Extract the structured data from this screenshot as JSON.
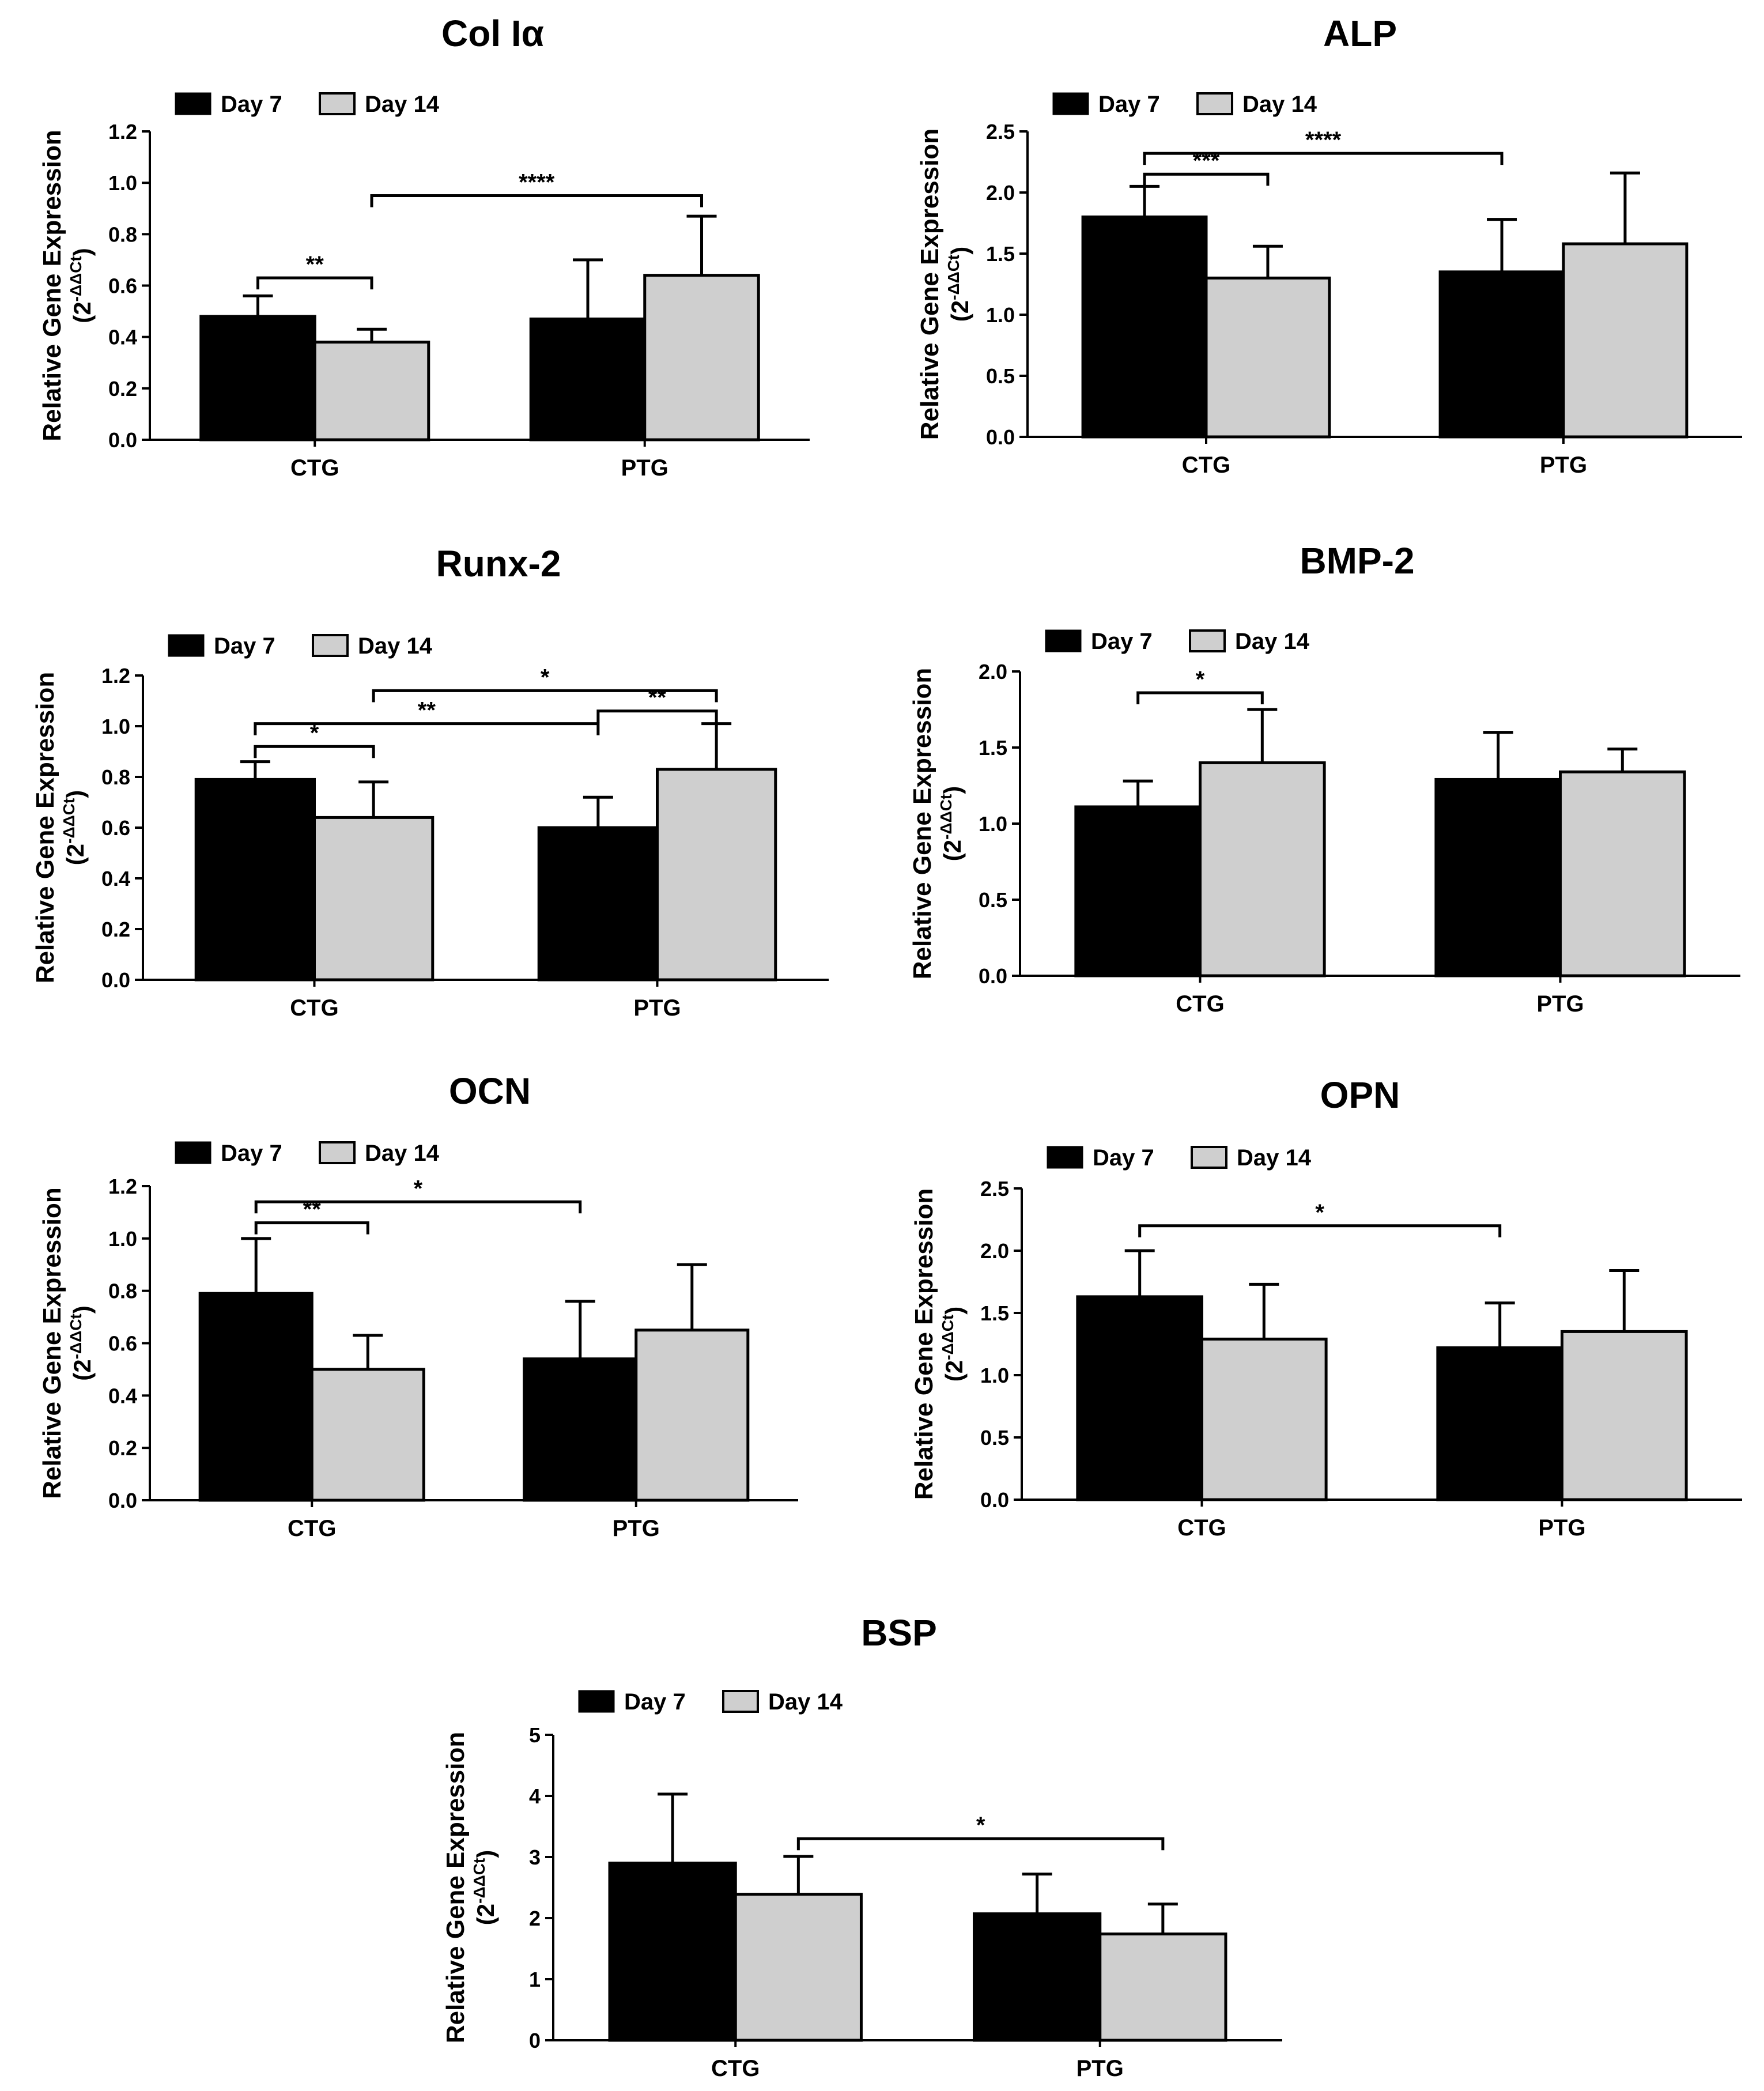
{
  "figure": {
    "legend": {
      "series1": "Day 7",
      "series2": "Day 14"
    },
    "ylabel_line1": "Relative Gene Expression",
    "ylabel_line2_open": "(2",
    "ylabel_line2_sup": "-ΔΔCt",
    "ylabel_line2_close": ")",
    "colors": {
      "day7": "#000000",
      "day14": "#cfcfcf",
      "axis": "#000000"
    }
  },
  "chart_data": [
    {
      "type": "bar",
      "title": "Col Iα",
      "categories": [
        "CTG",
        "PTG"
      ],
      "series": [
        {
          "name": "Day 7",
          "values": [
            0.48,
            0.47
          ],
          "errors": [
            0.08,
            0.23
          ]
        },
        {
          "name": "Day 14",
          "values": [
            0.38,
            0.64
          ],
          "errors": [
            0.05,
            0.23
          ]
        }
      ],
      "ylim": [
        0,
        1.2
      ],
      "yticks": [
        "0.0",
        "0.2",
        "0.4",
        "0.6",
        "0.8",
        "1.0",
        "1.2"
      ],
      "xlabel": "",
      "ylabel": "Relative Gene Expression (2-ΔΔCt)",
      "significance": [
        {
          "from": [
            0,
            0
          ],
          "to": [
            0,
            1
          ],
          "level": 0.63,
          "label": "**"
        },
        {
          "from": [
            0,
            1
          ],
          "to": [
            1,
            1
          ],
          "level": 0.95,
          "label": "****"
        }
      ]
    },
    {
      "type": "bar",
      "title": "ALP",
      "categories": [
        "CTG",
        "PTG"
      ],
      "series": [
        {
          "name": "Day 7",
          "values": [
            1.8,
            1.35
          ],
          "errors": [
            0.25,
            0.43
          ]
        },
        {
          "name": "Day 14",
          "values": [
            1.3,
            1.58
          ],
          "errors": [
            0.26,
            0.58
          ]
        }
      ],
      "ylim": [
        0,
        2.5
      ],
      "yticks": [
        "0.0",
        "0.5",
        "1.0",
        "1.5",
        "2.0",
        "2.5"
      ],
      "xlabel": "",
      "ylabel": "Relative Gene Expression (2-ΔΔCt)",
      "significance": [
        {
          "from": [
            0,
            0
          ],
          "to": [
            0,
            1
          ],
          "level": 2.15,
          "label": "***"
        },
        {
          "from": [
            0,
            0
          ],
          "to": [
            1,
            0
          ],
          "level": 2.32,
          "label": "****"
        }
      ]
    },
    {
      "type": "bar",
      "title": "Runx-2",
      "categories": [
        "CTG",
        "PTG"
      ],
      "series": [
        {
          "name": "Day 7",
          "values": [
            0.79,
            0.6
          ],
          "errors": [
            0.07,
            0.12
          ]
        },
        {
          "name": "Day 14",
          "values": [
            0.64,
            0.83
          ],
          "errors": [
            0.14,
            0.18
          ]
        }
      ],
      "ylim": [
        0,
        1.2
      ],
      "yticks": [
        "0.0",
        "0.2",
        "0.4",
        "0.6",
        "0.8",
        "1.0",
        "1.2"
      ],
      "xlabel": "",
      "ylabel": "Relative Gene Expression (2-ΔΔCt)",
      "significance": [
        {
          "from": [
            0,
            0
          ],
          "to": [
            0,
            1
          ],
          "level": 0.92,
          "label": "*"
        },
        {
          "from": [
            0,
            0
          ],
          "to": [
            1,
            0
          ],
          "level": 1.01,
          "label": "**"
        },
        {
          "from": [
            1,
            0
          ],
          "to": [
            1,
            1
          ],
          "level": 1.06,
          "label": "**"
        },
        {
          "from": [
            0,
            1
          ],
          "to": [
            1,
            1
          ],
          "level": 1.14,
          "label": "*"
        }
      ]
    },
    {
      "type": "bar",
      "title": "BMP-2",
      "categories": [
        "CTG",
        "PTG"
      ],
      "series": [
        {
          "name": "Day 7",
          "values": [
            1.11,
            1.29
          ],
          "errors": [
            0.17,
            0.31
          ]
        },
        {
          "name": "Day 14",
          "values": [
            1.4,
            1.34
          ],
          "errors": [
            0.35,
            0.15
          ]
        }
      ],
      "ylim": [
        0,
        2.0
      ],
      "yticks": [
        "0.0",
        "0.5",
        "1.0",
        "1.5",
        "2.0"
      ],
      "xlabel": "",
      "ylabel": "Relative Gene Expression (2-ΔΔCt)",
      "significance": [
        {
          "from": [
            0,
            0
          ],
          "to": [
            0,
            1
          ],
          "level": 1.86,
          "label": "*"
        }
      ]
    },
    {
      "type": "bar",
      "title": "OCN",
      "categories": [
        "CTG",
        "PTG"
      ],
      "series": [
        {
          "name": "Day 7",
          "values": [
            0.79,
            0.54
          ],
          "errors": [
            0.21,
            0.22
          ]
        },
        {
          "name": "Day 14",
          "values": [
            0.5,
            0.65
          ],
          "errors": [
            0.13,
            0.25
          ]
        }
      ],
      "ylim": [
        0,
        1.2
      ],
      "yticks": [
        "0.0",
        "0.2",
        "0.4",
        "0.6",
        "0.8",
        "1.0",
        "1.2"
      ],
      "xlabel": "",
      "ylabel": "Relative Gene Expression (2-ΔΔCt)",
      "significance": [
        {
          "from": [
            0,
            0
          ],
          "to": [
            0,
            1
          ],
          "level": 1.06,
          "label": "**"
        },
        {
          "from": [
            0,
            0
          ],
          "to": [
            1,
            0
          ],
          "level": 1.14,
          "label": "*"
        }
      ]
    },
    {
      "type": "bar",
      "title": "OPN",
      "categories": [
        "CTG",
        "PTG"
      ],
      "series": [
        {
          "name": "Day 7",
          "values": [
            1.63,
            1.22
          ],
          "errors": [
            0.37,
            0.36
          ]
        },
        {
          "name": "Day 14",
          "values": [
            1.29,
            1.35
          ],
          "errors": [
            0.44,
            0.49
          ]
        }
      ],
      "ylim": [
        0,
        2.5
      ],
      "yticks": [
        "0.0",
        "0.5",
        "1.0",
        "1.5",
        "2.0",
        "2.5"
      ],
      "xlabel": "",
      "ylabel": "Relative Gene Expression (2-ΔΔCt)",
      "significance": [
        {
          "from": [
            0,
            0
          ],
          "to": [
            1,
            0
          ],
          "level": 2.2,
          "label": "*"
        }
      ]
    },
    {
      "type": "bar",
      "title": "BSP",
      "categories": [
        "CTG",
        "PTG"
      ],
      "series": [
        {
          "name": "Day 7",
          "values": [
            2.9,
            2.07
          ],
          "errors": [
            1.13,
            0.65
          ]
        },
        {
          "name": "Day 14",
          "values": [
            2.39,
            1.74
          ],
          "errors": [
            0.62,
            0.49
          ]
        }
      ],
      "ylim": [
        0,
        5
      ],
      "yticks": [
        "0",
        "1",
        "2",
        "3",
        "4",
        "5"
      ],
      "xlabel": "",
      "ylabel": "Relative Gene Expression (2-ΔΔCt)",
      "significance": [
        {
          "from": [
            0,
            1
          ],
          "to": [
            1,
            1
          ],
          "level": 3.3,
          "label": "*"
        }
      ]
    }
  ]
}
